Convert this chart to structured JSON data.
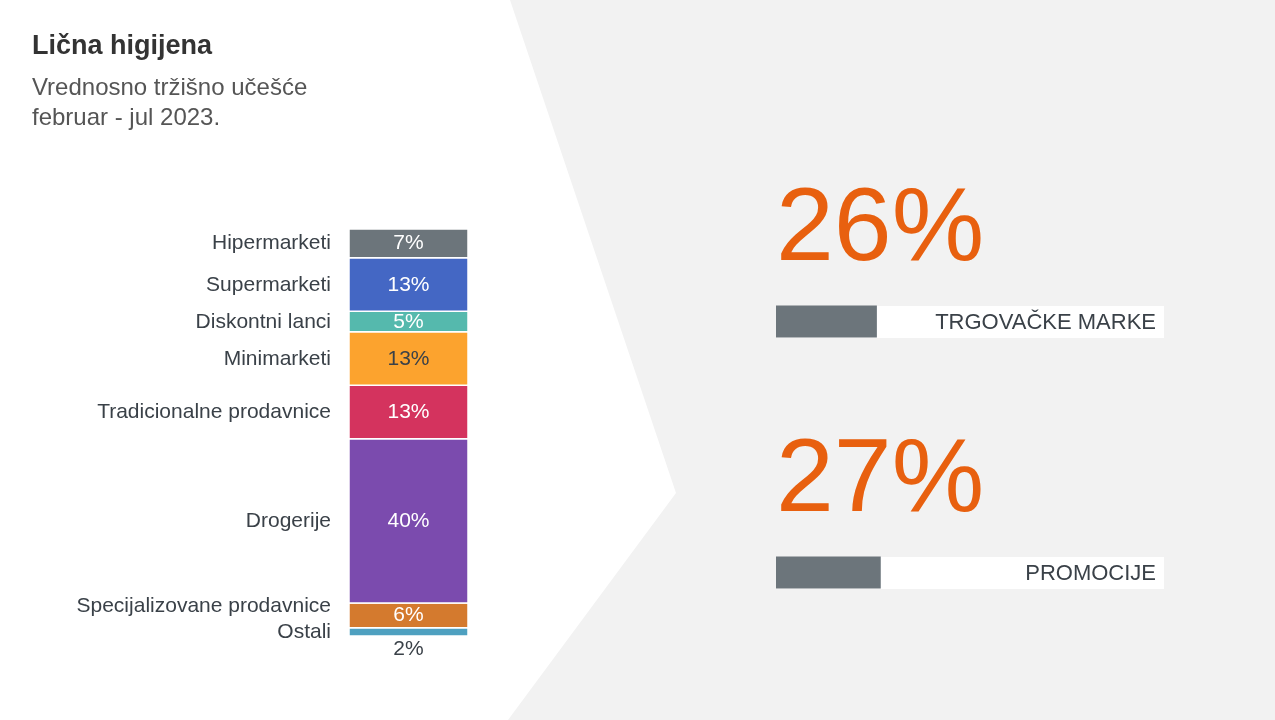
{
  "chart_data": [
    {
      "type": "bar",
      "title": "Lična higijena",
      "subtitle": "Vrednosno tržišno učešće\nfebruar - jul 2023.",
      "stacked": true,
      "categories": [
        null
      ],
      "tick_labels": false,
      "series": [
        {
          "name": "Ostali",
          "color": "#4ea0c0",
          "values": [
            2
          ],
          "value_labels": [
            "2%"
          ]
        },
        {
          "name": "Specijalizovane prodavnice",
          "color": "#d47a2e",
          "values": [
            6
          ],
          "value_labels": [
            "6%"
          ]
        },
        {
          "name": "Drogerije",
          "color": "#7b4bae",
          "values": [
            40
          ],
          "value_labels": [
            "40%"
          ]
        },
        {
          "name": "Tradicionalne prodavnice",
          "color": "#d4335e",
          "values": [
            13
          ],
          "value_labels": [
            "13%"
          ]
        },
        {
          "name": "Minimarketi",
          "color": "#fca32e",
          "values": [
            13
          ],
          "value_labels": [
            "13%"
          ]
        },
        {
          "name": "Diskontni lanci",
          "color": "#55b9ad",
          "values": [
            5
          ],
          "value_labels": [
            "5%"
          ]
        },
        {
          "name": "Supermarketi",
          "color": "#4467c4",
          "values": [
            13
          ],
          "value_labels": [
            "13%"
          ]
        },
        {
          "name": "Hipermarketi",
          "color": "#6c757b",
          "values": [
            7
          ],
          "value_labels": [
            "7%"
          ]
        }
      ]
    },
    {
      "type": "bar",
      "orientation": "horizontal",
      "categories": [
        "TRGOVAČKE MARKE",
        "PROMOCIJE"
      ],
      "values": [
        26,
        27
      ],
      "value_labels": [
        "26%",
        "27%"
      ],
      "color": "#6c757b",
      "xlim": [
        0,
        100
      ],
      "tick_labels": false
    }
  ]
}
